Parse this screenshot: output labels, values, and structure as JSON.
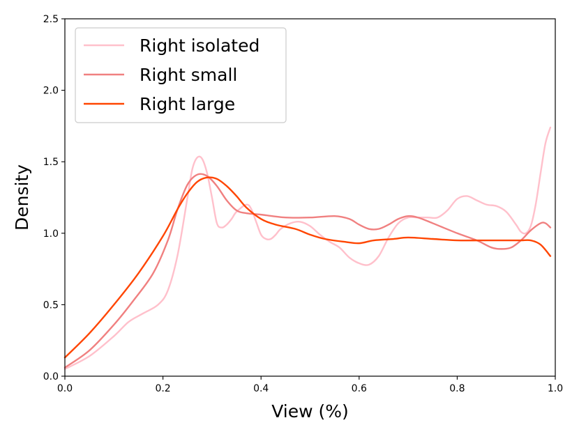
{
  "chart_data": {
    "type": "line",
    "title": "",
    "xlabel": "View (%)",
    "ylabel": "Density",
    "xlim": [
      0.0,
      1.0
    ],
    "ylim": [
      0.0,
      2.5
    ],
    "xticks": [
      "0.0",
      "0.2",
      "0.4",
      "0.6",
      "0.8",
      "1.0"
    ],
    "yticks": [
      "0.0",
      "0.5",
      "1.0",
      "1.5",
      "2.0",
      "2.5"
    ],
    "grid": false,
    "legend_position": "upper-left",
    "series": [
      {
        "name": "Right isolated",
        "color": "#ffc0cb",
        "x": [
          0.0,
          0.05,
          0.1,
          0.13,
          0.16,
          0.19,
          0.21,
          0.23,
          0.25,
          0.26,
          0.27,
          0.28,
          0.29,
          0.3,
          0.31,
          0.32,
          0.33,
          0.34,
          0.35,
          0.37,
          0.38,
          0.39,
          0.4,
          0.41,
          0.42,
          0.43,
          0.44,
          0.46,
          0.48,
          0.5,
          0.52,
          0.54,
          0.56,
          0.58,
          0.6,
          0.62,
          0.64,
          0.66,
          0.68,
          0.7,
          0.72,
          0.74,
          0.76,
          0.78,
          0.8,
          0.82,
          0.84,
          0.86,
          0.88,
          0.9,
          0.92,
          0.93,
          0.94,
          0.95,
          0.96,
          0.97,
          0.98,
          0.99
        ],
        "y": [
          0.05,
          0.14,
          0.28,
          0.38,
          0.44,
          0.5,
          0.6,
          0.85,
          1.25,
          1.45,
          1.53,
          1.52,
          1.42,
          1.25,
          1.07,
          1.04,
          1.06,
          1.1,
          1.15,
          1.2,
          1.17,
          1.08,
          0.99,
          0.96,
          0.96,
          0.99,
          1.03,
          1.07,
          1.08,
          1.05,
          0.99,
          0.94,
          0.9,
          0.83,
          0.79,
          0.78,
          0.84,
          0.97,
          1.07,
          1.11,
          1.11,
          1.11,
          1.11,
          1.16,
          1.24,
          1.26,
          1.23,
          1.2,
          1.19,
          1.15,
          1.06,
          1.01,
          1.0,
          1.05,
          1.2,
          1.42,
          1.63,
          1.74
        ]
      },
      {
        "name": "Right small",
        "color": "#f08080",
        "x": [
          0.0,
          0.05,
          0.1,
          0.14,
          0.18,
          0.21,
          0.23,
          0.25,
          0.27,
          0.29,
          0.31,
          0.33,
          0.35,
          0.37,
          0.4,
          0.45,
          0.5,
          0.55,
          0.58,
          0.6,
          0.62,
          0.64,
          0.66,
          0.68,
          0.7,
          0.72,
          0.75,
          0.8,
          0.84,
          0.87,
          0.89,
          0.91,
          0.93,
          0.95,
          0.97,
          0.98,
          0.99
        ],
        "y": [
          0.06,
          0.18,
          0.36,
          0.53,
          0.72,
          0.95,
          1.17,
          1.34,
          1.41,
          1.4,
          1.33,
          1.23,
          1.16,
          1.14,
          1.13,
          1.11,
          1.11,
          1.12,
          1.1,
          1.06,
          1.03,
          1.03,
          1.06,
          1.1,
          1.12,
          1.11,
          1.07,
          1.0,
          0.95,
          0.9,
          0.89,
          0.9,
          0.95,
          1.02,
          1.07,
          1.07,
          1.04
        ]
      },
      {
        "name": "Right large",
        "color": "#ff4500",
        "x": [
          0.0,
          0.05,
          0.1,
          0.15,
          0.2,
          0.23,
          0.25,
          0.27,
          0.29,
          0.31,
          0.33,
          0.35,
          0.37,
          0.4,
          0.43,
          0.47,
          0.5,
          0.53,
          0.57,
          0.6,
          0.63,
          0.67,
          0.7,
          0.75,
          0.8,
          0.85,
          0.9,
          0.93,
          0.95,
          0.97,
          0.99
        ],
        "y": [
          0.13,
          0.3,
          0.5,
          0.72,
          0.98,
          1.17,
          1.28,
          1.36,
          1.39,
          1.38,
          1.33,
          1.26,
          1.18,
          1.1,
          1.06,
          1.03,
          0.99,
          0.96,
          0.94,
          0.93,
          0.95,
          0.96,
          0.97,
          0.96,
          0.95,
          0.95,
          0.95,
          0.95,
          0.95,
          0.92,
          0.84
        ]
      }
    ]
  }
}
